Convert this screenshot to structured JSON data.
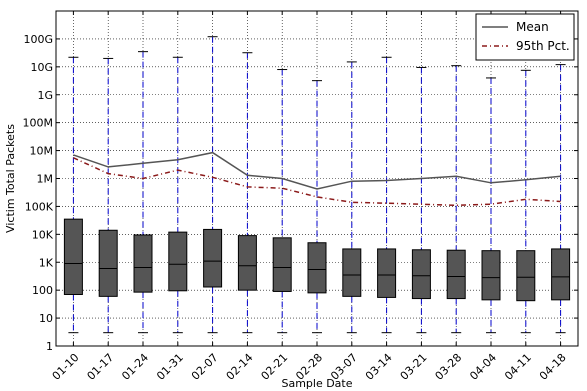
{
  "chart_data": {
    "type": "box",
    "xlabel": "Sample Date",
    "ylabel": "Victim Total Packets",
    "y_scale": "log",
    "ylim": [
      1,
      1000000000000
    ],
    "y_ticks": [
      {
        "value": 1,
        "label": "1"
      },
      {
        "value": 10,
        "label": "10"
      },
      {
        "value": 100,
        "label": "100"
      },
      {
        "value": 1000,
        "label": "1K"
      },
      {
        "value": 10000,
        "label": "10K"
      },
      {
        "value": 100000,
        "label": "100K"
      },
      {
        "value": 1000000,
        "label": "1M"
      },
      {
        "value": 10000000,
        "label": "10M"
      },
      {
        "value": 100000000,
        "label": "100M"
      },
      {
        "value": 1000000000,
        "label": "1G"
      },
      {
        "value": 10000000000,
        "label": "10G"
      },
      {
        "value": 100000000000,
        "label": "100G"
      }
    ],
    "categories": [
      "01-10",
      "01-17",
      "01-24",
      "01-31",
      "02-07",
      "02-14",
      "02-21",
      "02-28",
      "03-07",
      "03-14",
      "03-21",
      "03-28",
      "04-04",
      "04-11",
      "04-18"
    ],
    "boxes": [
      {
        "whisker_low": 3,
        "q1": 70,
        "median": 900,
        "q3": 35000,
        "whisker_high": 22000000000
      },
      {
        "whisker_low": 3,
        "q1": 60,
        "median": 600,
        "q3": 14000,
        "whisker_high": 20000000000
      },
      {
        "whisker_low": 3,
        "q1": 85,
        "median": 650,
        "q3": 9500,
        "whisker_high": 35000000000
      },
      {
        "whisker_low": 3,
        "q1": 95,
        "median": 850,
        "q3": 12000,
        "whisker_high": 22000000000
      },
      {
        "whisker_low": 3,
        "q1": 130,
        "median": 1100,
        "q3": 15000,
        "whisker_high": 120000000000
      },
      {
        "whisker_low": 3,
        "q1": 100,
        "median": 750,
        "q3": 9000,
        "whisker_high": 32000000000
      },
      {
        "whisker_low": 3,
        "q1": 90,
        "median": 650,
        "q3": 7500,
        "whisker_high": 8000000000
      },
      {
        "whisker_low": 3,
        "q1": 80,
        "median": 550,
        "q3": 5000,
        "whisker_high": 3200000000
      },
      {
        "whisker_low": 3,
        "q1": 60,
        "median": 350,
        "q3": 3000,
        "whisker_high": 15000000000
      },
      {
        "whisker_low": 3,
        "q1": 55,
        "median": 350,
        "q3": 3000,
        "whisker_high": 22000000000
      },
      {
        "whisker_low": 3,
        "q1": 50,
        "median": 330,
        "q3": 2800,
        "whisker_high": 9500000000
      },
      {
        "whisker_low": 3,
        "q1": 50,
        "median": 310,
        "q3": 2700,
        "whisker_high": 11000000000
      },
      {
        "whisker_low": 3,
        "q1": 45,
        "median": 280,
        "q3": 2600,
        "whisker_high": 4000000000
      },
      {
        "whisker_low": 3,
        "q1": 42,
        "median": 290,
        "q3": 2600,
        "whisker_high": 7500000000
      },
      {
        "whisker_low": 3,
        "q1": 45,
        "median": 300,
        "q3": 3000,
        "whisker_high": 12000000000
      }
    ],
    "series": [
      {
        "name": "Mean",
        "color": "#555555",
        "style": "solid",
        "values": [
          7000000,
          2600000,
          3500000,
          4700000,
          8500000,
          1300000,
          1000000,
          420000,
          800000,
          850000,
          1000000,
          1200000,
          700000,
          900000,
          1200000
        ]
      },
      {
        "name": "95th Pct.",
        "color": "#8b1a1a",
        "style": "dashdot",
        "values": [
          5500000,
          1500000,
          1000000,
          2000000,
          1100000,
          500000,
          450000,
          220000,
          140000,
          130000,
          120000,
          110000,
          120000,
          180000,
          150000
        ]
      }
    ],
    "legend_position": "top-right",
    "grid": true,
    "box_color": "#555555",
    "whisker_color": "#0000cc"
  }
}
